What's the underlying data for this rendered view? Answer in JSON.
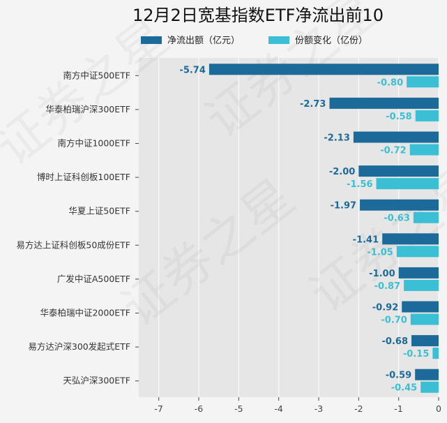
{
  "chart_data": {
    "type": "bar",
    "orientation": "horizontal",
    "title": "12月2日宽基指数ETF净流出前10",
    "categories": [
      "南方中证500ETF",
      "华泰柏瑞沪深300ETF",
      "南方中证1000ETF",
      "博时上证科创板100ETF",
      "华夏上证50ETF",
      "易方达上证科创板50成份ETF",
      "广发中证A500ETF",
      "华泰柏瑞中证2000ETF",
      "易方达沪深300发起式ETF",
      "天弘沪深300ETF"
    ],
    "series": [
      {
        "name": "净流出额（亿元）",
        "color": "#1c6a99",
        "values": [
          -5.74,
          -2.73,
          -2.13,
          -2.0,
          -1.97,
          -1.41,
          -1.0,
          -0.92,
          -0.68,
          -0.59
        ],
        "labels": [
          "-5.74",
          "-2.73",
          "-2.13",
          "-2.00",
          "-1.97",
          "-1.41",
          "-1.00",
          "-0.92",
          "-0.68",
          "-0.59"
        ]
      },
      {
        "name": "份额变化（亿份）",
        "color": "#3bbfd4",
        "values": [
          -0.8,
          -0.58,
          -0.72,
          -1.56,
          -0.63,
          -1.05,
          -0.87,
          -0.7,
          -0.15,
          -0.45
        ],
        "labels": [
          "-0.80",
          "-0.58",
          "-0.72",
          "-1.56",
          "-0.63",
          "-1.05",
          "-0.87",
          "-0.70",
          "-0.15",
          "-0.45"
        ]
      }
    ],
    "xlim": [
      -7.5,
      0
    ],
    "xticks": [
      -7,
      -6,
      -5,
      -4,
      -3,
      -2,
      -1,
      0
    ],
    "xtick_labels": [
      "-7",
      "-6",
      "-5",
      "-4",
      "-3",
      "-2",
      "-1",
      "0"
    ],
    "grid": true,
    "legend_position": "top"
  },
  "watermark": "证券之星",
  "colors": {
    "plot_bg": "#e6e6e6",
    "grid": "#ffffff"
  }
}
